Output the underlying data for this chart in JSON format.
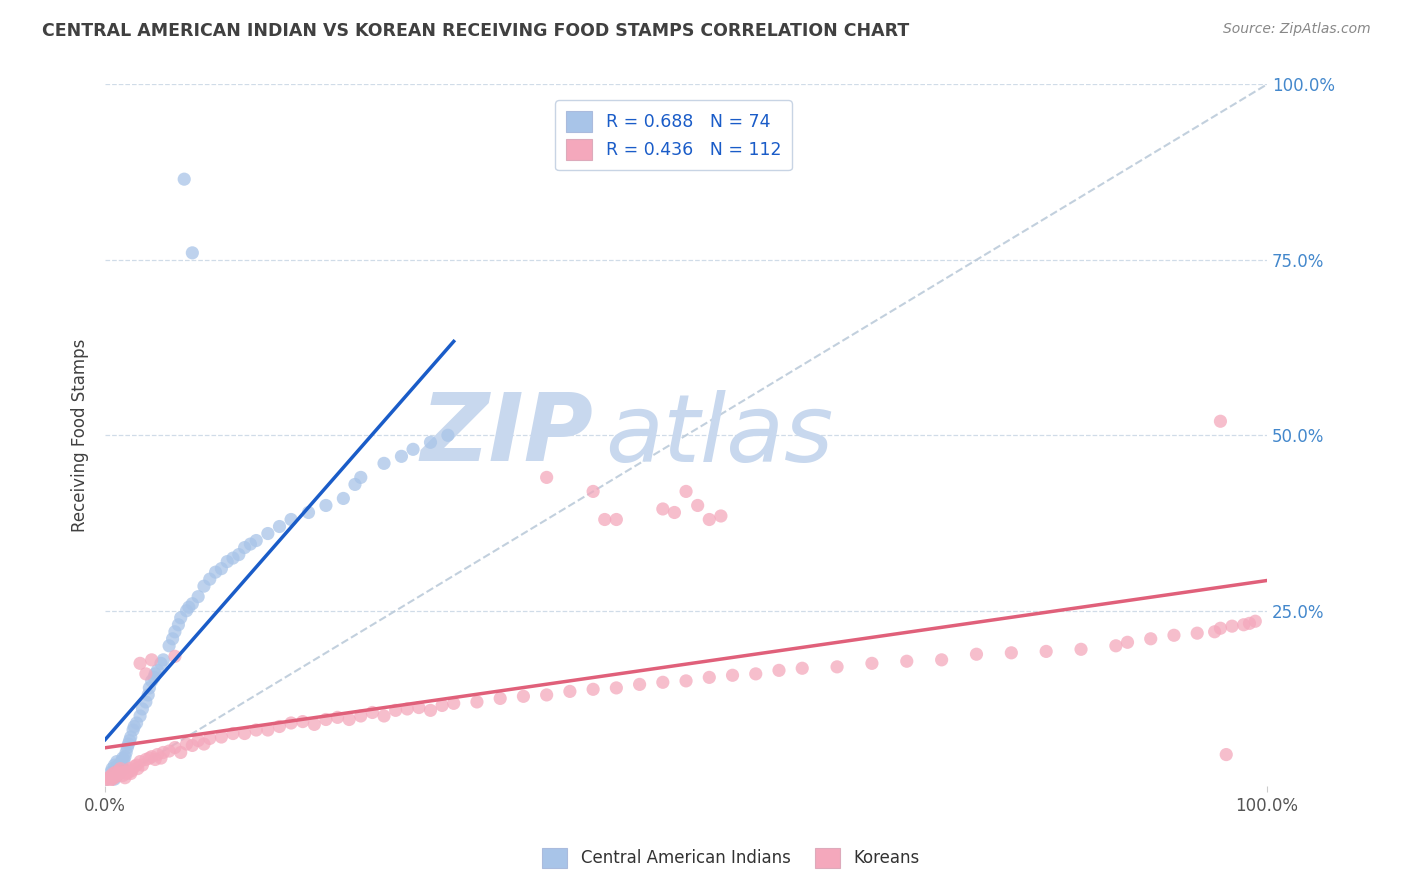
{
  "title": "CENTRAL AMERICAN INDIAN VS KOREAN RECEIVING FOOD STAMPS CORRELATION CHART",
  "source": "Source: ZipAtlas.com",
  "ylabel": "Receiving Food Stamps",
  "blue_label": "Central American Indians",
  "pink_label": "Koreans",
  "blue_R": 0.688,
  "blue_N": 74,
  "pink_R": 0.436,
  "pink_N": 112,
  "blue_color": "#a8c4e8",
  "pink_color": "#f4a8bc",
  "blue_line_color": "#1a5cc8",
  "pink_line_color": "#e0607a",
  "diag_color": "#b8c8d8",
  "watermark_zip_color": "#c8d8ee",
  "watermark_atlas_color": "#c8d8ee",
  "background_color": "#ffffff",
  "grid_color": "#d0dce8",
  "right_label_color": "#4488cc",
  "title_color": "#404040",
  "xlim": [
    0,
    1
  ],
  "ylim": [
    0,
    1
  ],
  "blue_x": [
    0.005,
    0.006,
    0.007,
    0.008,
    0.008,
    0.009,
    0.009,
    0.01,
    0.01,
    0.01,
    0.011,
    0.011,
    0.012,
    0.012,
    0.013,
    0.013,
    0.014,
    0.015,
    0.015,
    0.016,
    0.017,
    0.018,
    0.019,
    0.02,
    0.021,
    0.022,
    0.024,
    0.025,
    0.027,
    0.03,
    0.032,
    0.035,
    0.037,
    0.038,
    0.04,
    0.042,
    0.043,
    0.045,
    0.048,
    0.05,
    0.055,
    0.058,
    0.06,
    0.063,
    0.065,
    0.07,
    0.072,
    0.075,
    0.08,
    0.085,
    0.09,
    0.095,
    0.1,
    0.105,
    0.11,
    0.115,
    0.12,
    0.125,
    0.13,
    0.14,
    0.15,
    0.16,
    0.175,
    0.19,
    0.205,
    0.215,
    0.22,
    0.24,
    0.255,
    0.265,
    0.28,
    0.295,
    0.068,
    0.075
  ],
  "blue_y": [
    0.02,
    0.025,
    0.015,
    0.03,
    0.01,
    0.018,
    0.022,
    0.028,
    0.035,
    0.015,
    0.02,
    0.025,
    0.03,
    0.018,
    0.022,
    0.028,
    0.035,
    0.04,
    0.025,
    0.038,
    0.042,
    0.048,
    0.055,
    0.06,
    0.065,
    0.07,
    0.08,
    0.085,
    0.09,
    0.1,
    0.11,
    0.12,
    0.13,
    0.14,
    0.15,
    0.155,
    0.16,
    0.165,
    0.175,
    0.18,
    0.2,
    0.21,
    0.22,
    0.23,
    0.24,
    0.25,
    0.255,
    0.26,
    0.27,
    0.285,
    0.295,
    0.305,
    0.31,
    0.32,
    0.325,
    0.33,
    0.34,
    0.345,
    0.35,
    0.36,
    0.37,
    0.38,
    0.39,
    0.4,
    0.41,
    0.43,
    0.44,
    0.46,
    0.47,
    0.48,
    0.49,
    0.5,
    0.865,
    0.76
  ],
  "pink_x": [
    0.002,
    0.003,
    0.004,
    0.005,
    0.006,
    0.007,
    0.008,
    0.009,
    0.01,
    0.011,
    0.012,
    0.013,
    0.015,
    0.016,
    0.017,
    0.018,
    0.019,
    0.02,
    0.021,
    0.022,
    0.023,
    0.025,
    0.027,
    0.028,
    0.03,
    0.032,
    0.035,
    0.038,
    0.04,
    0.043,
    0.045,
    0.048,
    0.05,
    0.055,
    0.06,
    0.065,
    0.07,
    0.075,
    0.08,
    0.085,
    0.09,
    0.1,
    0.11,
    0.12,
    0.13,
    0.14,
    0.15,
    0.16,
    0.17,
    0.18,
    0.19,
    0.2,
    0.21,
    0.22,
    0.23,
    0.24,
    0.25,
    0.26,
    0.27,
    0.28,
    0.29,
    0.3,
    0.32,
    0.34,
    0.36,
    0.38,
    0.4,
    0.42,
    0.44,
    0.46,
    0.48,
    0.5,
    0.52,
    0.54,
    0.56,
    0.58,
    0.6,
    0.63,
    0.66,
    0.69,
    0.72,
    0.75,
    0.78,
    0.81,
    0.84,
    0.87,
    0.88,
    0.9,
    0.92,
    0.94,
    0.955,
    0.96,
    0.97,
    0.98,
    0.985,
    0.99,
    0.03,
    0.04,
    0.06,
    0.035,
    0.38,
    0.42,
    0.43,
    0.44,
    0.48,
    0.49,
    0.5,
    0.51,
    0.52,
    0.53,
    0.96,
    0.965
  ],
  "pink_y": [
    0.01,
    0.012,
    0.008,
    0.015,
    0.01,
    0.018,
    0.012,
    0.02,
    0.015,
    0.018,
    0.022,
    0.025,
    0.015,
    0.02,
    0.012,
    0.018,
    0.022,
    0.02,
    0.025,
    0.018,
    0.022,
    0.028,
    0.03,
    0.025,
    0.035,
    0.03,
    0.038,
    0.04,
    0.042,
    0.038,
    0.045,
    0.04,
    0.048,
    0.05,
    0.055,
    0.048,
    0.06,
    0.058,
    0.065,
    0.06,
    0.068,
    0.07,
    0.075,
    0.075,
    0.08,
    0.08,
    0.085,
    0.09,
    0.092,
    0.088,
    0.095,
    0.098,
    0.095,
    0.1,
    0.105,
    0.1,
    0.108,
    0.11,
    0.112,
    0.108,
    0.115,
    0.118,
    0.12,
    0.125,
    0.128,
    0.13,
    0.135,
    0.138,
    0.14,
    0.145,
    0.148,
    0.15,
    0.155,
    0.158,
    0.16,
    0.165,
    0.168,
    0.17,
    0.175,
    0.178,
    0.18,
    0.188,
    0.19,
    0.192,
    0.195,
    0.2,
    0.205,
    0.21,
    0.215,
    0.218,
    0.22,
    0.225,
    0.228,
    0.23,
    0.232,
    0.235,
    0.175,
    0.18,
    0.185,
    0.16,
    0.44,
    0.42,
    0.38,
    0.38,
    0.395,
    0.39,
    0.42,
    0.4,
    0.38,
    0.385,
    0.52,
    0.045
  ]
}
